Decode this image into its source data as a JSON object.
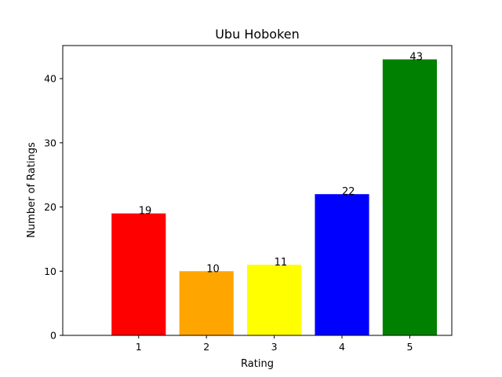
{
  "chart_data": {
    "type": "bar",
    "title": "Ubu Hoboken",
    "xlabel": "Rating",
    "ylabel": "Number of Ratings",
    "categories": [
      "1",
      "2",
      "3",
      "4",
      "5"
    ],
    "values": [
      19,
      10,
      11,
      22,
      43
    ],
    "colors": [
      "#ff0000",
      "#ffa500",
      "#ffff00",
      "#0000ff",
      "#008000"
    ],
    "ylim": [
      0,
      45.15
    ],
    "yticks": [
      0,
      10,
      20,
      30,
      40
    ],
    "grid": false,
    "data_labels": [
      "19",
      "10",
      "11",
      "22",
      "43"
    ]
  }
}
